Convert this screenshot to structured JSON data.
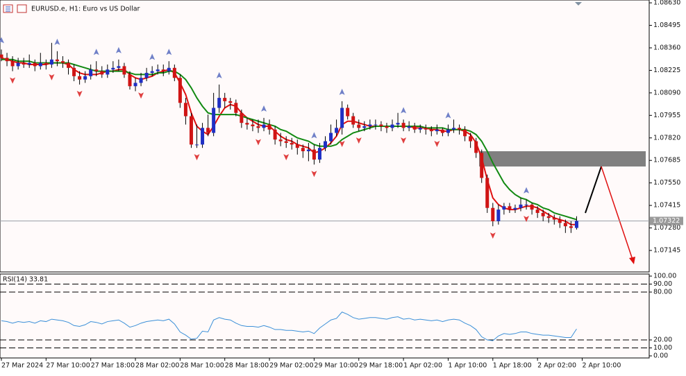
{
  "chart_data": [
    {
      "type": "candlestick",
      "title": "EURUSD.e, H1:  Euro vs US Dollar",
      "xlim": [
        0,
        116
      ],
      "ylim": [
        1.07016,
        1.08647
      ],
      "yticks": [
        {
          "value": 1.0863,
          "label": "1.08630"
        },
        1.08495,
        {
          "value": 1.0836,
          "label": "1.08360"
        },
        1.08225,
        {
          "value": 1.0809,
          "label": "1.08090"
        },
        1.07955,
        {
          "value": 1.0782,
          "label": "1.07820"
        },
        1.07685,
        {
          "value": 1.0755,
          "label": "1.07550"
        },
        1.07415,
        {
          "value": 1.0728,
          "label": "1.07280"
        },
        1.07145
      ],
      "current_price": 1.07322,
      "up_color": "#1f2fc4",
      "down_color": "#d01414",
      "open": [
        1.0832,
        1.083,
        1.0828,
        1.0825,
        1.0827,
        1.0826,
        1.0827,
        1.0825,
        1.0827,
        1.0826,
        1.0829,
        1.0828,
        1.0827,
        1.0824,
        1.0819,
        1.0817,
        1.0819,
        1.0823,
        1.0822,
        1.082,
        1.0823,
        1.0824,
        1.0825,
        1.082,
        1.0813,
        1.0815,
        1.0818,
        1.0821,
        1.0822,
        1.0823,
        1.0822,
        1.0824,
        1.0818,
        1.0803,
        1.0795,
        1.0778,
        1.0778,
        1.0788,
        1.0785,
        1.08,
        1.0806,
        1.0804,
        1.0803,
        1.0797,
        1.0791,
        1.079,
        1.0789,
        1.0788,
        1.079,
        1.0787,
        1.0781,
        1.078,
        1.0779,
        1.0778,
        1.0776,
        1.0774,
        1.0775,
        1.0769,
        1.0776,
        1.078,
        1.0785,
        1.0788,
        1.08,
        1.0795,
        1.079,
        1.0788,
        1.0789,
        1.079,
        1.079,
        1.0789,
        1.0788,
        1.079,
        1.0791,
        1.0788,
        1.0789,
        1.0787,
        1.0788,
        1.0787,
        1.0786,
        1.0787,
        1.0785,
        1.0787,
        1.0788,
        1.0787,
        1.0783,
        1.078,
        1.0773,
        1.0758,
        1.074,
        1.0732,
        1.0739,
        1.0741,
        1.0739,
        1.074,
        1.0742,
        1.0742,
        1.0739,
        1.0737,
        1.0735,
        1.0734,
        1.0733,
        1.0731,
        1.0729,
        1.0728
      ],
      "high": [
        1.0835,
        1.0833,
        1.0831,
        1.083,
        1.083,
        1.0832,
        1.0829,
        1.0833,
        1.0829,
        1.0839,
        1.0834,
        1.0831,
        1.0829,
        1.0826,
        1.0822,
        1.0822,
        1.0826,
        1.0828,
        1.0825,
        1.0826,
        1.0828,
        1.0829,
        1.0827,
        1.0822,
        1.0818,
        1.0821,
        1.0824,
        1.0825,
        1.0826,
        1.0826,
        1.0828,
        1.0826,
        1.082,
        1.0806,
        1.0797,
        1.079,
        1.0791,
        1.0796,
        1.0809,
        1.0814,
        1.0809,
        1.0806,
        1.0805,
        1.0799,
        1.0794,
        1.0793,
        1.0793,
        1.0794,
        1.0793,
        1.0789,
        1.0785,
        1.0783,
        1.0782,
        1.0781,
        1.0778,
        1.0779,
        1.0778,
        1.0779,
        1.0783,
        1.079,
        1.0793,
        1.0804,
        1.0802,
        1.0797,
        1.0793,
        1.0792,
        1.0793,
        1.0793,
        1.0792,
        1.0791,
        1.0793,
        1.0797,
        1.0793,
        1.0792,
        1.0791,
        1.079,
        1.079,
        1.0789,
        1.079,
        1.0788,
        1.079,
        1.0793,
        1.079,
        1.0789,
        1.0785,
        1.0782,
        1.0775,
        1.076,
        1.0743,
        1.0742,
        1.0743,
        1.0743,
        1.0742,
        1.0746,
        1.0745,
        1.0743,
        1.0741,
        1.0739,
        1.0737,
        1.0736,
        1.0735,
        1.0733,
        1.0732,
        1.0735
      ],
      "low": [
        1.0828,
        1.0825,
        1.0822,
        1.0823,
        1.0824,
        1.0824,
        1.0822,
        1.0823,
        1.0823,
        1.0824,
        1.0825,
        1.0824,
        1.082,
        1.0816,
        1.0814,
        1.0815,
        1.0817,
        1.0819,
        1.0818,
        1.0818,
        1.0821,
        1.0822,
        1.0818,
        1.0811,
        1.081,
        1.0813,
        1.0816,
        1.0819,
        1.082,
        1.0819,
        1.082,
        1.0816,
        1.08,
        1.079,
        1.0776,
        1.0776,
        1.0776,
        1.0783,
        1.0783,
        1.0797,
        1.08,
        1.0799,
        1.0795,
        1.0788,
        1.0787,
        1.0786,
        1.0785,
        1.0786,
        1.0784,
        1.0778,
        1.0777,
        1.0776,
        1.0775,
        1.0772,
        1.077,
        1.0768,
        1.0766,
        1.0767,
        1.0774,
        1.0778,
        1.0783,
        1.0784,
        1.0793,
        1.0788,
        1.0786,
        1.0786,
        1.0787,
        1.0787,
        1.0786,
        1.0785,
        1.0786,
        1.0788,
        1.0786,
        1.0786,
        1.0785,
        1.0785,
        1.0784,
        1.0783,
        1.0784,
        1.0783,
        1.0783,
        1.0785,
        1.0784,
        1.078,
        1.0776,
        1.077,
        1.0755,
        1.0737,
        1.0729,
        1.073,
        1.0736,
        1.0737,
        1.0737,
        1.0738,
        1.0739,
        1.0736,
        1.0734,
        1.0732,
        1.0731,
        1.073,
        1.0728,
        1.0725,
        1.0725,
        1.0727
      ],
      "close": [
        1.083,
        1.0828,
        1.0825,
        1.0827,
        1.0826,
        1.0827,
        1.0825,
        1.0827,
        1.0826,
        1.0829,
        1.0828,
        1.0827,
        1.0824,
        1.0819,
        1.0817,
        1.0819,
        1.0823,
        1.0822,
        1.082,
        1.0823,
        1.0824,
        1.0825,
        1.082,
        1.0813,
        1.0815,
        1.0818,
        1.0821,
        1.0822,
        1.0823,
        1.0822,
        1.0824,
        1.0818,
        1.0803,
        1.0795,
        1.0778,
        1.0778,
        1.0788,
        1.0785,
        1.08,
        1.0806,
        1.0804,
        1.0803,
        1.0797,
        1.0791,
        1.079,
        1.0789,
        1.0788,
        1.079,
        1.0787,
        1.0781,
        1.078,
        1.0779,
        1.0778,
        1.0776,
        1.0774,
        1.0775,
        1.0769,
        1.0776,
        1.078,
        1.0785,
        1.0788,
        1.08,
        1.0795,
        1.079,
        1.0788,
        1.0789,
        1.079,
        1.079,
        1.0789,
        1.0788,
        1.079,
        1.0791,
        1.0788,
        1.0789,
        1.0787,
        1.0788,
        1.0787,
        1.0786,
        1.0787,
        1.0785,
        1.0787,
        1.0788,
        1.0787,
        1.0783,
        1.078,
        1.0773,
        1.0758,
        1.074,
        1.0732,
        1.0739,
        1.0741,
        1.0739,
        1.074,
        1.0742,
        1.0742,
        1.0739,
        1.0737,
        1.0735,
        1.0734,
        1.0733,
        1.0731,
        1.0729,
        1.0728,
        1.07322
      ],
      "overlays": [
        {
          "color": "#e01010",
          "values": [
            1.083,
            1.0829,
            1.0828,
            1.0827,
            1.0827,
            1.0826,
            1.0826,
            1.0826,
            1.0826,
            1.0827,
            1.0827,
            1.0827,
            1.0826,
            1.0823,
            1.0821,
            1.082,
            1.082,
            1.082,
            1.0821,
            1.0822,
            1.0822,
            1.0823,
            1.0823,
            1.082,
            1.0818,
            1.0817,
            1.0818,
            1.0819,
            1.0821,
            1.0822,
            1.0823,
            1.0821,
            1.0815,
            1.0808,
            1.0797,
            1.0789,
            1.0786,
            1.0784,
            1.0789,
            1.0795,
            1.08,
            1.0802,
            1.0801,
            1.0797,
            1.0794,
            1.0792,
            1.079,
            1.0789,
            1.0789,
            1.0786,
            1.0783,
            1.0781,
            1.078,
            1.0778,
            1.0777,
            1.0776,
            1.0773,
            1.0774,
            1.0776,
            1.0779,
            1.0783,
            1.079,
            1.0792,
            1.0792,
            1.0791,
            1.079,
            1.0789,
            1.0789,
            1.0789,
            1.0789,
            1.0789,
            1.0789,
            1.0789,
            1.0789,
            1.0788,
            1.0788,
            1.0788,
            1.0787,
            1.0787,
            1.0786,
            1.0786,
            1.0787,
            1.0787,
            1.0786,
            1.0784,
            1.0779,
            1.077,
            1.0757,
            1.0746,
            1.0742,
            1.074,
            1.0739,
            1.0739,
            1.074,
            1.0741,
            1.0741,
            1.074,
            1.0738,
            1.0736,
            1.0734,
            1.0733,
            1.0732,
            1.073,
            1.073
          ]
        },
        {
          "color": "#128a12",
          "values": [
            1.0829,
            1.0829,
            1.0829,
            1.0828,
            1.0828,
            1.0828,
            1.0827,
            1.0827,
            1.0827,
            1.0827,
            1.0827,
            1.0827,
            1.0827,
            1.0826,
            1.0825,
            1.0824,
            1.0823,
            1.0822,
            1.0822,
            1.0822,
            1.0822,
            1.0822,
            1.0822,
            1.0821,
            1.082,
            1.082,
            1.082,
            1.082,
            1.0821,
            1.0821,
            1.0822,
            1.0822,
            1.082,
            1.0817,
            1.0812,
            1.0806,
            1.0801,
            1.0797,
            1.0796,
            1.0796,
            1.0796,
            1.0796,
            1.0796,
            1.0795,
            1.0794,
            1.0793,
            1.0792,
            1.0791,
            1.079,
            1.0789,
            1.0787,
            1.0786,
            1.0784,
            1.0782,
            1.0781,
            1.078,
            1.0778,
            1.0777,
            1.0777,
            1.0777,
            1.0778,
            1.0781,
            1.0783,
            1.0785,
            1.0786,
            1.0787,
            1.0788,
            1.0789,
            1.0789,
            1.0789,
            1.0789,
            1.0789,
            1.0789,
            1.0789,
            1.0789,
            1.0789,
            1.0788,
            1.0788,
            1.0788,
            1.0788,
            1.0787,
            1.0787,
            1.0787,
            1.0787,
            1.0786,
            1.0784,
            1.078,
            1.0774,
            1.0767,
            1.0761,
            1.0755,
            1.0751,
            1.0748,
            1.0746,
            1.0745,
            1.0743,
            1.0742,
            1.074,
            1.0739,
            1.0737,
            1.0736,
            1.0735,
            1.0734,
            1.0733
          ]
        }
      ],
      "fractals_up": [
        0,
        10,
        17,
        21,
        27,
        30,
        39,
        47,
        56,
        61,
        72,
        80,
        94
      ],
      "fractals_down": [
        2,
        9,
        14,
        25,
        35,
        46,
        51,
        56,
        61,
        64,
        72,
        78,
        88,
        94
      ]
    },
    {
      "type": "line",
      "label": "RSI(14) 33.81",
      "color": "#3a8fd8",
      "xlim": [
        0,
        116
      ],
      "ylim": [
        0,
        100
      ],
      "yticks": [
        {
          "value": 100,
          "label": "100.00"
        },
        {
          "value": 90,
          "label": "90.00"
        },
        {
          "value": 80,
          "label": "80.00"
        },
        {
          "value": 20,
          "label": "20.00"
        },
        {
          "value": 10,
          "label": "10.00"
        },
        {
          "value": 0,
          "label": "0.00"
        }
      ],
      "levels": [
        90,
        80,
        20,
        10
      ],
      "values": [
        44,
        43,
        41,
        43,
        42,
        43,
        41,
        44,
        43,
        46,
        45,
        44,
        42,
        38,
        37,
        39,
        43,
        42,
        40,
        43,
        44,
        45,
        41,
        36,
        38,
        41,
        43,
        44,
        45,
        44,
        46,
        40,
        30,
        26,
        21,
        22,
        31,
        30,
        45,
        48,
        46,
        45,
        41,
        38,
        37,
        37,
        36,
        38,
        36,
        33,
        33,
        32,
        32,
        31,
        30,
        31,
        28,
        35,
        40,
        45,
        47,
        55,
        52,
        48,
        46,
        47,
        48,
        48,
        47,
        46,
        48,
        49,
        46,
        47,
        45,
        46,
        45,
        44,
        45,
        43,
        45,
        46,
        45,
        41,
        38,
        33,
        24,
        20,
        19,
        25,
        28,
        27,
        28,
        30,
        30,
        28,
        27,
        26,
        26,
        25,
        24,
        23,
        23,
        33.81
      ],
      "xticks": [
        {
          "value": 0,
          "label": "27 Mar 2024"
        },
        {
          "value": 8,
          "label": "27 Mar 10:00"
        },
        {
          "value": 16,
          "label": "27 Mar 18:00"
        },
        {
          "value": 24,
          "label": "28 Mar 02:00"
        },
        {
          "value": 32,
          "label": "28 Mar 10:00"
        },
        {
          "value": 40,
          "label": "28 Mar 18:00"
        },
        {
          "value": 48,
          "label": "29 Mar 02:00"
        },
        {
          "value": 56,
          "label": "29 Mar 10:00"
        },
        {
          "value": 64,
          "label": "29 Mar 18:00"
        },
        {
          "value": 72,
          "label": "1 Apr 02:00"
        },
        {
          "value": 80,
          "label": "1 Apr 10:00"
        },
        {
          "value": 88,
          "label": "1 Apr 18:00"
        },
        {
          "value": 96,
          "label": "2 Apr 02:00"
        },
        {
          "value": 104,
          "label": "2 Apr 10:00"
        }
      ]
    }
  ]
}
